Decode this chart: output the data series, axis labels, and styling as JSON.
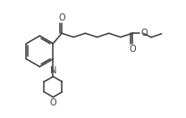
{
  "bg_color": "#ffffff",
  "line_color": "#3a3a3a",
  "lw": 1.1,
  "fig_w": 2.08,
  "fig_h": 1.32,
  "dpi": 100,
  "xlim": [
    -0.3,
    10.2
  ],
  "ylim": [
    -0.5,
    6.3
  ]
}
